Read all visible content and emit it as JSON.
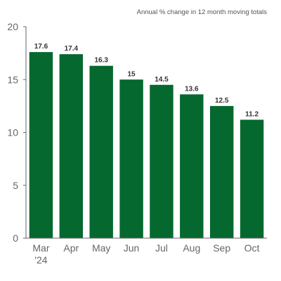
{
  "chart_data": {
    "type": "bar",
    "subtitle": "Annual % change in 12 month moving totals",
    "categories": [
      "Mar '24",
      "Apr",
      "May",
      "Jun",
      "Jul",
      "Aug",
      "Sep",
      "Oct"
    ],
    "category_lines": [
      [
        "Mar",
        "'24"
      ],
      [
        "Apr"
      ],
      [
        "May"
      ],
      [
        "Jun"
      ],
      [
        "Jul"
      ],
      [
        "Aug"
      ],
      [
        "Sep"
      ],
      [
        "Oct"
      ]
    ],
    "values": [
      17.6,
      17.4,
      16.3,
      15,
      14.5,
      13.6,
      12.5,
      11.2
    ],
    "value_labels": [
      "17.6",
      "17.4",
      "16.3",
      "15",
      "14.5",
      "13.6",
      "12.5",
      "11.2"
    ],
    "yticks": [
      0,
      5,
      10,
      15,
      20
    ],
    "ylim": [
      0,
      20
    ],
    "bar_color": "#05692f",
    "axis_color": "#666666",
    "grid": false,
    "legend": "none"
  }
}
